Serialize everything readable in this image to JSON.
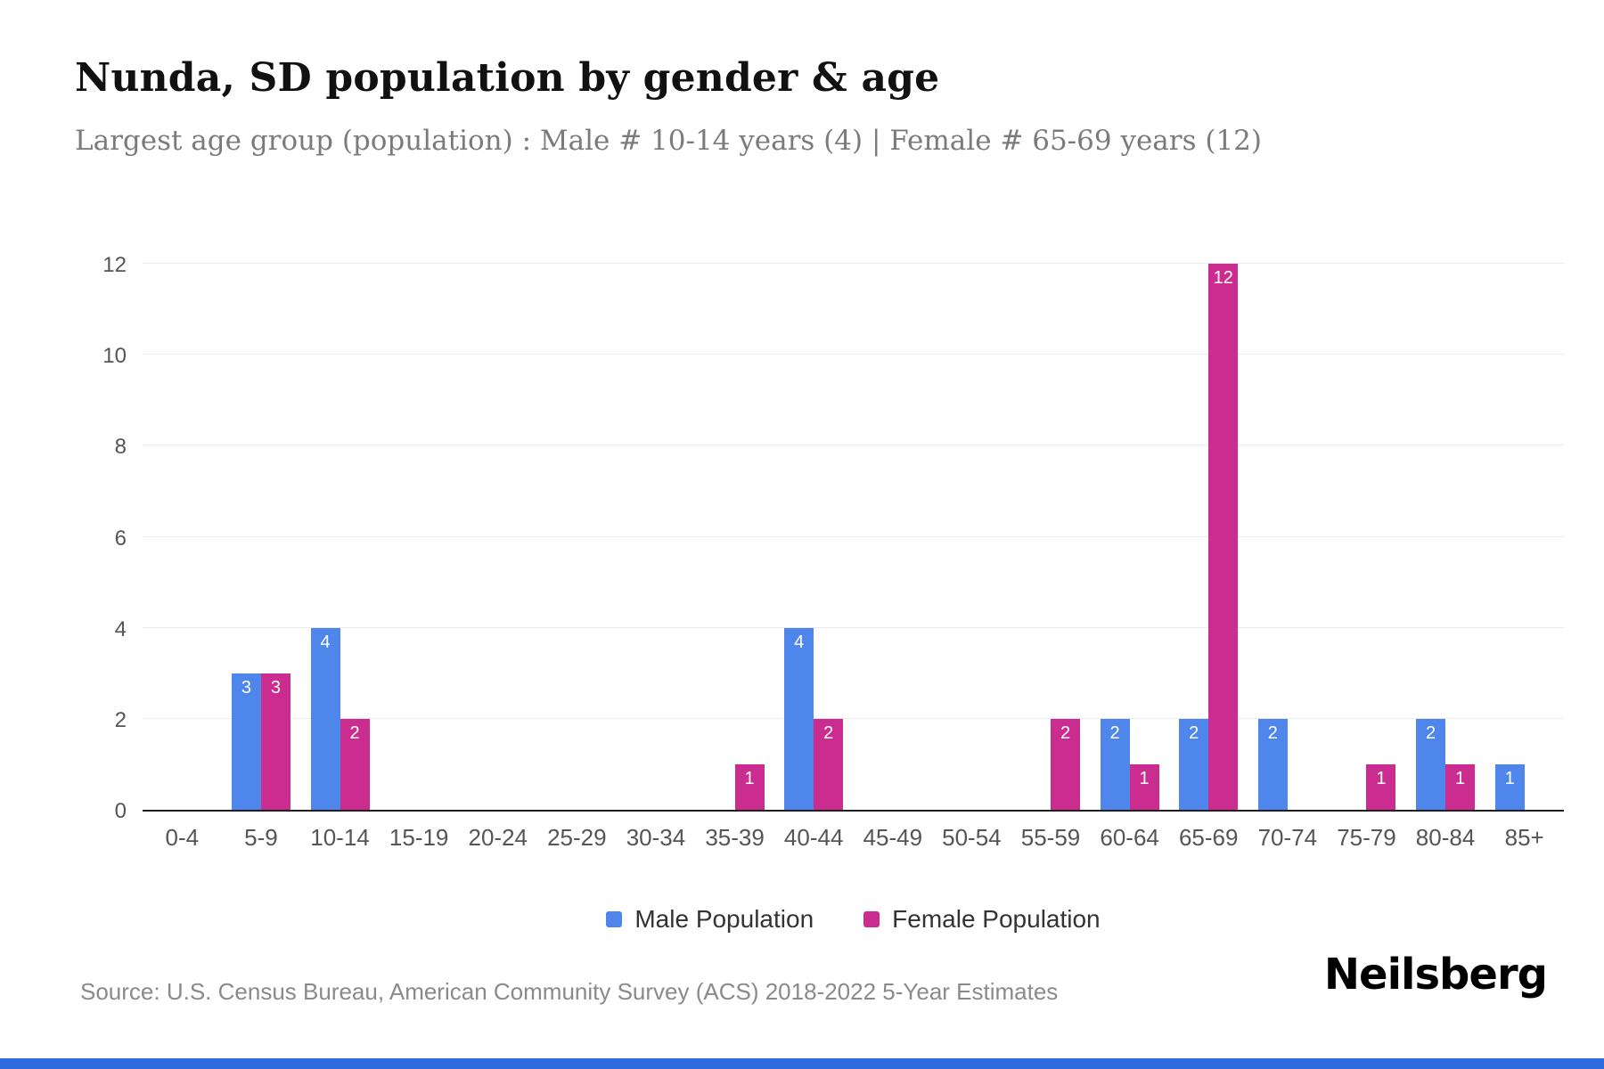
{
  "page": {
    "title": "Nunda, SD population by gender & age",
    "subtitle": "Largest age group (population) : Male # 10-14 years (4) | Female # 65-69 years (12)",
    "source": "Source: U.S. Census Bureau, American Community Survey (ACS) 2018-2022 5-Year Estimates",
    "brand": "Neilsberg"
  },
  "colors": {
    "male": "#4f86ec",
    "female": "#ca2d8f",
    "footer_bar": "#2f6be0",
    "gridline": "#ececec",
    "axis_text": "#555555"
  },
  "chart_data": {
    "type": "bar",
    "title": "Nunda, SD population by gender & age",
    "xlabel": "",
    "ylabel": "",
    "categories": [
      "0-4",
      "5-9",
      "10-14",
      "15-19",
      "20-24",
      "25-29",
      "30-34",
      "35-39",
      "40-44",
      "45-49",
      "50-54",
      "55-59",
      "60-64",
      "65-69",
      "70-74",
      "75-79",
      "80-84",
      "85+"
    ],
    "series": [
      {
        "name": "Male Population",
        "color": "#4f86ec",
        "values": [
          0,
          3,
          4,
          0,
          0,
          0,
          0,
          0,
          4,
          0,
          0,
          0,
          2,
          2,
          2,
          0,
          2,
          1
        ]
      },
      {
        "name": "Female Population",
        "color": "#ca2d8f",
        "values": [
          0,
          3,
          2,
          0,
          0,
          0,
          0,
          1,
          2,
          0,
          0,
          2,
          1,
          12,
          0,
          1,
          1,
          0
        ]
      }
    ],
    "ylim": [
      0,
      12
    ],
    "yticks": [
      0,
      2,
      4,
      6,
      8,
      10,
      12
    ],
    "grid": "horizontal",
    "legend_position": "bottom"
  }
}
